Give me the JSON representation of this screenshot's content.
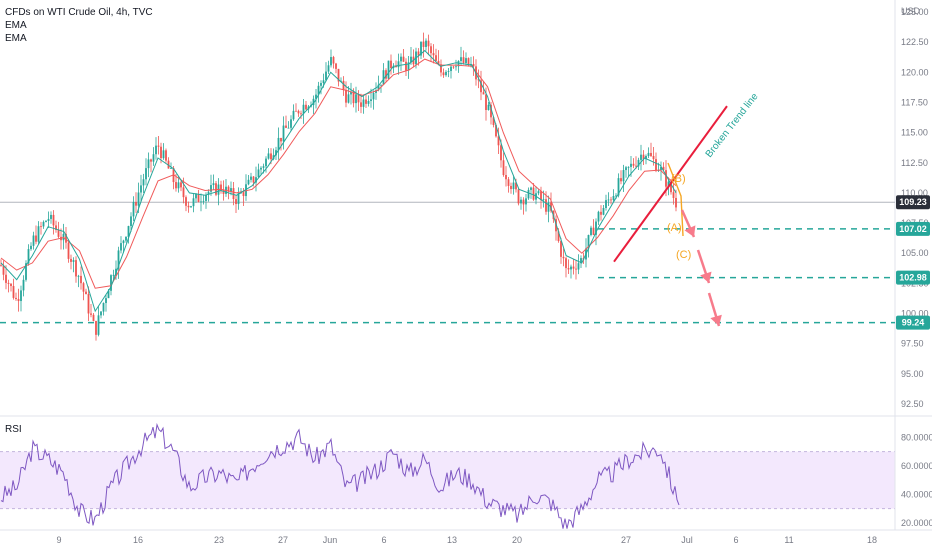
{
  "title": "CFDs on WTI Crude Oil, 4h, TVC",
  "legend": [
    "EMA",
    "EMA"
  ],
  "currency": "USD",
  "rsi_label": "RSI",
  "annotations": {
    "trend_label": "Broken Trend line",
    "wave_b": "(B)",
    "wave_a": "(A)",
    "wave_c": "(C)"
  },
  "colors": {
    "up": "#26a69a",
    "down": "#ef5350",
    "ema_fast": "#26a69a",
    "ema_slow": "#f05a5a",
    "trend": "#e91e3c",
    "level": "#26a69a",
    "arrow": "#f77b8b",
    "wave": "#f5a623",
    "rsi": "#7e57c2",
    "rsi_band": "#f3e8fd"
  },
  "chart_data": {
    "type": "candlestick",
    "title": "CFDs on WTI Crude Oil, 4h, TVC",
    "price_axis": {
      "ylim": [
        91.5,
        126.0
      ],
      "ticks": [
        92.5,
        95.0,
        97.5,
        100.0,
        102.5,
        105.0,
        107.5,
        110.0,
        112.5,
        115.0,
        117.5,
        120.0,
        122.5,
        125.0
      ]
    },
    "x_ticks": [
      "9",
      "16",
      "23",
      "27",
      "Jun",
      "6",
      "13",
      "20",
      "27",
      "Jul",
      "6",
      "11",
      "18"
    ],
    "last_price": 109.23,
    "levels": [
      107.02,
      102.98,
      99.24
    ],
    "anchors": [
      104,
      101,
      106,
      108,
      106,
      103,
      98.5,
      103,
      107,
      111,
      114,
      111,
      109,
      110,
      110.5,
      109.5,
      111,
      113,
      115,
      117,
      118,
      121,
      118,
      117.5,
      119,
      121,
      120.5,
      122.5,
      120,
      121,
      120.5,
      117,
      112,
      109.5,
      110,
      108.5,
      103.5,
      104.5,
      108,
      110,
      112,
      113.5,
      112,
      109.23
    ],
    "ema_fast": [
      104.2,
      102.8,
      104.8,
      107.2,
      106.8,
      104.5,
      100.2,
      102.2,
      105.8,
      109.6,
      112.9,
      112.0,
      110.0,
      109.8,
      110.2,
      109.8,
      110.6,
      112.2,
      114.2,
      116.2,
      117.6,
      120.0,
      118.8,
      118.0,
      118.8,
      120.5,
      120.7,
      121.8,
      120.5,
      120.8,
      120.6,
      118.0,
      113.5,
      110.3,
      109.8,
      108.9,
      104.8,
      104.2,
      107.0,
      109.2,
      111.4,
      112.9,
      112.3,
      110.0
    ],
    "ema_slow": [
      104.6,
      103.6,
      104.2,
      106.0,
      106.3,
      105.2,
      102.1,
      102.3,
      104.7,
      107.9,
      111.0,
      111.5,
      110.6,
      110.2,
      110.3,
      110.0,
      110.3,
      111.5,
      113.2,
      115.1,
      116.6,
      118.8,
      118.5,
      118.1,
      118.5,
      119.8,
      120.2,
      121.1,
      120.6,
      120.6,
      120.5,
      118.8,
      115.0,
      111.8,
      110.6,
      109.5,
      106.2,
      105.0,
      106.3,
      108.1,
      110.2,
      111.8,
      111.9,
      110.6
    ],
    "rsi": {
      "ylim": [
        15,
        95
      ],
      "ticks": [
        20,
        40,
        60,
        80
      ],
      "band": [
        30,
        70
      ],
      "anchors": [
        38,
        45,
        72,
        65,
        55,
        28,
        22,
        45,
        60,
        75,
        85,
        70,
        45,
        52,
        55,
        48,
        60,
        70,
        75,
        80,
        65,
        75,
        45,
        50,
        58,
        70,
        55,
        65,
        45,
        55,
        50,
        35,
        30,
        25,
        40,
        35,
        18,
        30,
        50,
        55,
        65,
        70,
        72,
        38
      ]
    }
  }
}
